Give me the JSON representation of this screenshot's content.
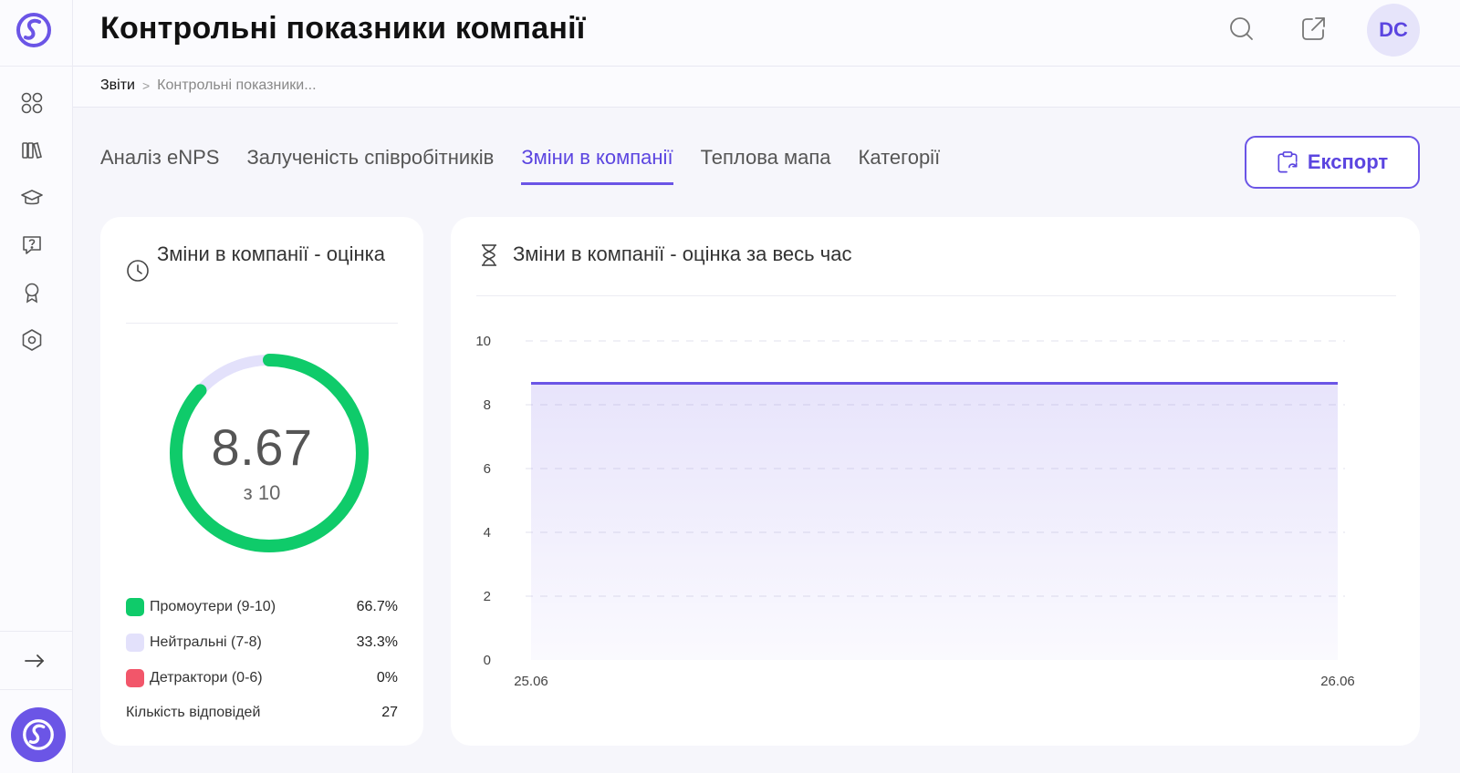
{
  "header": {
    "title": "Контрольні показники компанії",
    "avatar_initials": "DC"
  },
  "breadcrumb": {
    "root": "Звіти",
    "separator": ">",
    "current": "Контрольні показники..."
  },
  "sidebar": {
    "icons": [
      "dashboard-icon",
      "library-icon",
      "graduation-cap-icon",
      "help-icon",
      "award-icon",
      "settings-icon"
    ],
    "expand_icon": "arrow-right-icon"
  },
  "tabs": [
    {
      "label": "Аналіз eNPS",
      "active": false
    },
    {
      "label": "Залученість співробітників",
      "active": false
    },
    {
      "label": "Зміни в компанії",
      "active": true
    },
    {
      "label": "Теплова мапа",
      "active": false
    },
    {
      "label": "Категорії",
      "active": false
    }
  ],
  "export": {
    "label": "Експорт"
  },
  "score_card": {
    "title": "Зміни в компанії - оцінка",
    "score": "8.67",
    "score_sub": "з 10",
    "gauge_fraction": 0.867,
    "legend": [
      {
        "label": "Промоутери (9-10)",
        "value": "66.7%",
        "color": "#0fcb6a"
      },
      {
        "label": "Нейтральні (7-8)",
        "value": "33.3%",
        "color": "#e3e1fb"
      },
      {
        "label": "Детрактори (0-6)",
        "value": "0%",
        "color": "#f2566a"
      }
    ],
    "count_label": "Кількість відповідей",
    "count_value": "27"
  },
  "trend_card": {
    "title": "Зміни в компанії - оцінка за весь час"
  },
  "chart_data": {
    "type": "area",
    "x": [
      "25.06",
      "26.06"
    ],
    "series": [
      {
        "values": [
          8.67,
          8.67
        ]
      }
    ],
    "ylim": [
      0,
      10
    ],
    "yticks": [
      0,
      2,
      4,
      6,
      8,
      10
    ],
    "grid": true,
    "line_color": "#6b55e6"
  },
  "colors": {
    "accent": "#6b55e6",
    "promoter": "#0fcb6a",
    "neutral": "#e3e1fb",
    "detractor": "#f2566a"
  }
}
